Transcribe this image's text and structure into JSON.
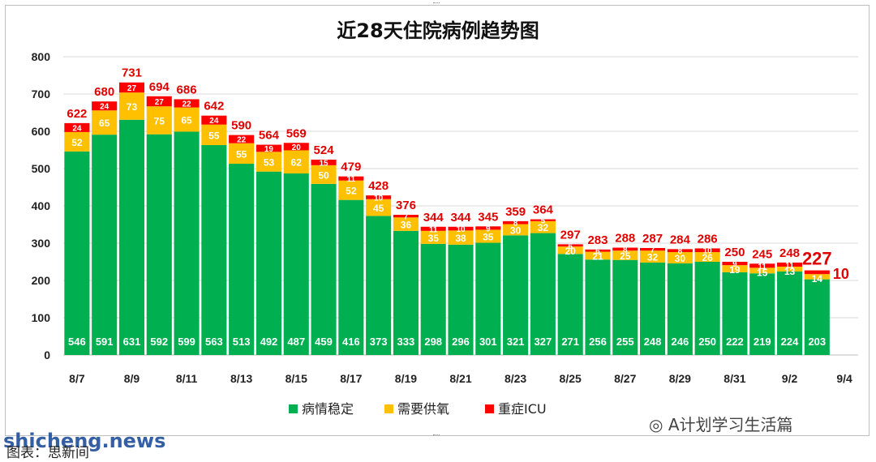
{
  "chart_data": {
    "type": "bar",
    "stacked": true,
    "title": "近28天住院病例趋势图",
    "ylim": [
      0,
      800
    ],
    "yticks": [
      0,
      100,
      200,
      300,
      400,
      500,
      600,
      700,
      800
    ],
    "grid": true,
    "legend_position": "bottom",
    "categories": [
      "8/7",
      "8/8",
      "8/9",
      "8/10",
      "8/11",
      "8/12",
      "8/13",
      "8/14",
      "8/15",
      "8/16",
      "8/17",
      "8/18",
      "8/19",
      "8/20",
      "8/21",
      "8/22",
      "8/23",
      "8/24",
      "8/25",
      "8/26",
      "8/27",
      "8/28",
      "8/29",
      "8/30",
      "8/31",
      "9/1",
      "9/2",
      "9/3",
      "9/4"
    ],
    "xtick_labels": [
      "8/7",
      "8/9",
      "8/11",
      "8/13",
      "8/15",
      "8/17",
      "8/19",
      "8/21",
      "8/23",
      "8/25",
      "8/27",
      "8/29",
      "8/31",
      "9/2",
      "9/4"
    ],
    "series": [
      {
        "name": "病情稳定",
        "color": "#00b050",
        "values": [
          546,
          591,
          631,
          592,
          599,
          563,
          513,
          492,
          487,
          459,
          416,
          373,
          333,
          298,
          296,
          301,
          321,
          327,
          271,
          256,
          255,
          248,
          246,
          250,
          222,
          219,
          224,
          203,
          null
        ]
      },
      {
        "name": "需要供氧",
        "color": "#ffc000",
        "values": [
          52,
          65,
          73,
          75,
          65,
          55,
          55,
          53,
          62,
          50,
          52,
          45,
          36,
          35,
          38,
          35,
          30,
          32,
          20,
          21,
          25,
          32,
          30,
          26,
          19,
          15,
          13,
          14,
          null
        ]
      },
      {
        "name": "重症ICU",
        "color": "#ff0000",
        "values": [
          24,
          24,
          27,
          27,
          22,
          24,
          22,
          19,
          20,
          15,
          11,
          10,
          7,
          11,
          10,
          9,
          8,
          5,
          6,
          6,
          8,
          7,
          8,
          10,
          9,
          11,
          11,
          10,
          null
        ]
      }
    ],
    "totals": [
      622,
      680,
      731,
      694,
      686,
      642,
      590,
      564,
      569,
      524,
      479,
      428,
      376,
      344,
      344,
      345,
      359,
      364,
      297,
      283,
      288,
      287,
      284,
      286,
      250,
      245,
      248,
      227,
      null
    ],
    "highlight_last_total": true
  },
  "caption": "图表：思新间",
  "watermark": "A计划学习生活篇",
  "site": "shicheng.news"
}
